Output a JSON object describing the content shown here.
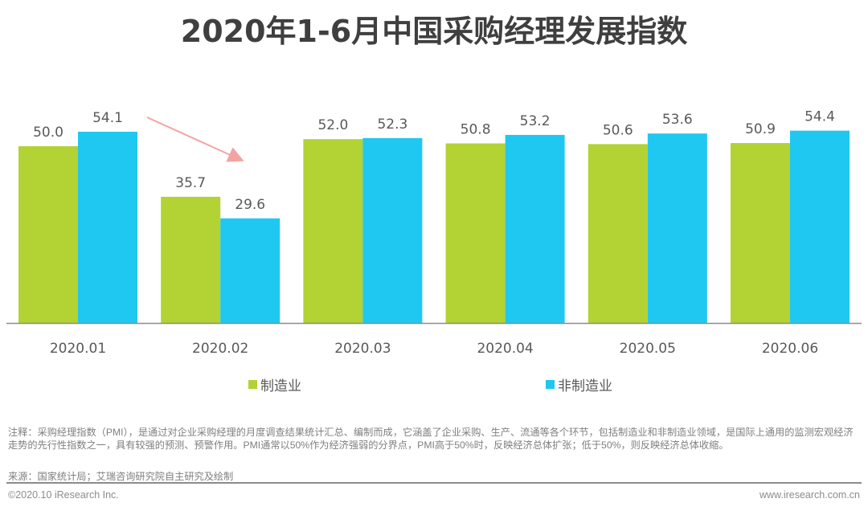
{
  "page": {
    "note": "注释：采购经理指数（PMI），是通过对企业采购经理的月度调查结果统计汇总、编制而成，它涵盖了企业采购、生产、流通等各个环节，包括制造业和非制造业领域，是国际上通用的监测宏观经济走势的先行性指数之一，具有较强的预测、预警作用。PMI通常以50%作为经济强弱的分界点，PMI高于50%时，反映经济总体扩张；低于50%，则反映经济总体收缩。",
    "source": "来源：国家统计局；艾瑞咨询研究院自主研究及绘制",
    "copyright": "©2020.10 iResearch Inc.",
    "website": "www.iresearch.com.cn"
  },
  "chart_data": {
    "type": "bar",
    "title": "2020年1-6月中国采购经理发展指数",
    "categories": [
      "2020.01",
      "2020.02",
      "2020.03",
      "2020.04",
      "2020.05",
      "2020.06"
    ],
    "series": [
      {
        "name": "制造业",
        "color": "#b3d234",
        "values": [
          50.0,
          35.7,
          52.0,
          50.8,
          50.6,
          50.9
        ]
      },
      {
        "name": "非制造业",
        "color": "#1fc8f0",
        "values": [
          54.1,
          29.6,
          52.3,
          53.2,
          53.6,
          54.4
        ]
      }
    ],
    "ylim": [
      0,
      60
    ],
    "xlabel": "",
    "ylabel": "",
    "grid": false,
    "legend": "bottom-center",
    "annotations": [
      {
        "type": "arrow",
        "from_category": "2020.01",
        "to_category": "2020.02",
        "meaning": "decline",
        "color": "#f4a3a3"
      }
    ]
  }
}
